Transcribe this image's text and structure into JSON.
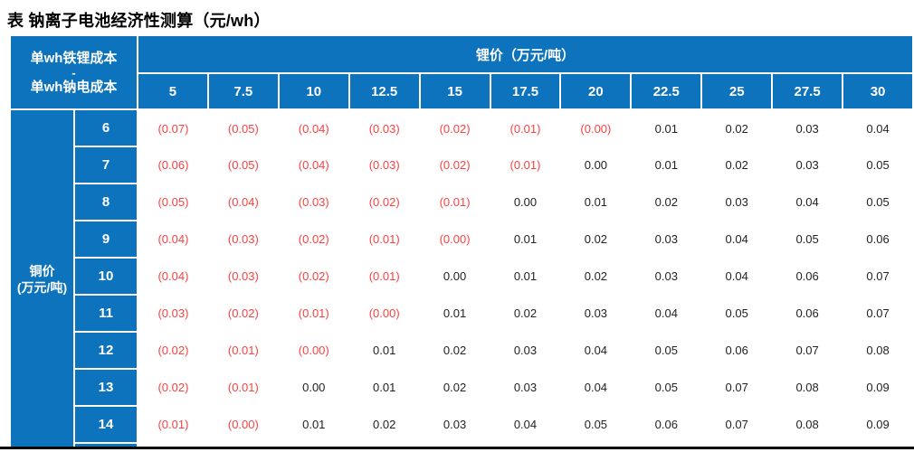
{
  "title": "表 钠离子电池经济性测算（元/wh）",
  "table": {
    "corner_lines": [
      "单wh铁锂成本",
      "-",
      "单wh钠电成本"
    ],
    "col_group_label": "锂价（万元/吨）",
    "row_group_lines": [
      "铜价",
      "(万元/吨)"
    ],
    "col_headers": [
      "5",
      "7.5",
      "10",
      "12.5",
      "15",
      "17.5",
      "20",
      "22.5",
      "25",
      "27.5",
      "30"
    ],
    "rows": [
      {
        "label": "6",
        "values": [
          "(0.07)",
          "(0.05)",
          "(0.04)",
          "(0.03)",
          "(0.02)",
          "(0.01)",
          "(0.00)",
          "0.01",
          "0.02",
          "0.03",
          "0.04"
        ]
      },
      {
        "label": "7",
        "values": [
          "(0.06)",
          "(0.05)",
          "(0.04)",
          "(0.03)",
          "(0.02)",
          "(0.01)",
          "0.00",
          "0.01",
          "0.02",
          "0.03",
          "0.05"
        ]
      },
      {
        "label": "8",
        "values": [
          "(0.05)",
          "(0.04)",
          "(0.03)",
          "(0.02)",
          "(0.01)",
          "0.00",
          "0.01",
          "0.02",
          "0.03",
          "0.04",
          "0.05"
        ]
      },
      {
        "label": "9",
        "values": [
          "(0.04)",
          "(0.03)",
          "(0.02)",
          "(0.01)",
          "(0.00)",
          "0.01",
          "0.02",
          "0.03",
          "0.04",
          "0.05",
          "0.06"
        ]
      },
      {
        "label": "10",
        "values": [
          "(0.04)",
          "(0.03)",
          "(0.02)",
          "(0.01)",
          "0.00",
          "0.01",
          "0.02",
          "0.03",
          "0.04",
          "0.06",
          "0.07"
        ]
      },
      {
        "label": "11",
        "values": [
          "(0.03)",
          "(0.02)",
          "(0.01)",
          "(0.00)",
          "0.01",
          "0.02",
          "0.03",
          "0.04",
          "0.05",
          "0.06",
          "0.07"
        ]
      },
      {
        "label": "12",
        "values": [
          "(0.02)",
          "(0.01)",
          "(0.00)",
          "0.01",
          "0.02",
          "0.03",
          "0.04",
          "0.05",
          "0.06",
          "0.07",
          "0.08"
        ]
      },
      {
        "label": "13",
        "values": [
          "(0.02)",
          "(0.01)",
          "0.00",
          "0.01",
          "0.02",
          "0.03",
          "0.04",
          "0.05",
          "0.07",
          "0.08",
          "0.09"
        ]
      },
      {
        "label": "14",
        "values": [
          "(0.01)",
          "(0.00)",
          "0.01",
          "0.02",
          "0.03",
          "0.04",
          "0.05",
          "0.06",
          "0.07",
          "0.08",
          "0.09"
        ]
      }
    ]
  },
  "colors": {
    "header_blue": "#0e73bd",
    "negative_red": "#fa4141",
    "value_text": "#222222",
    "bottom_rule": "#000000"
  },
  "chart_data": {
    "type": "table",
    "title": "表 钠离子电池经济性测算（元/wh）",
    "cell_metric": "单wh铁锂成本 - 单wh钠电成本",
    "column_axis": {
      "label": "锂价（万元/吨）",
      "values": [
        5,
        7.5,
        10,
        12.5,
        15,
        17.5,
        20,
        22.5,
        25,
        27.5,
        30
      ]
    },
    "row_axis": {
      "label": "铜价(万元/吨)",
      "values": [
        6,
        7,
        8,
        9,
        10,
        11,
        12,
        13,
        14
      ]
    },
    "negative_display": "red parentheses",
    "values": [
      [
        -0.07,
        -0.05,
        -0.04,
        -0.03,
        -0.02,
        -0.01,
        -0.0,
        0.01,
        0.02,
        0.03,
        0.04
      ],
      [
        -0.06,
        -0.05,
        -0.04,
        -0.03,
        -0.02,
        -0.01,
        0.0,
        0.01,
        0.02,
        0.03,
        0.05
      ],
      [
        -0.05,
        -0.04,
        -0.03,
        -0.02,
        -0.01,
        0.0,
        0.01,
        0.02,
        0.03,
        0.04,
        0.05
      ],
      [
        -0.04,
        -0.03,
        -0.02,
        -0.01,
        -0.0,
        0.01,
        0.02,
        0.03,
        0.04,
        0.05,
        0.06
      ],
      [
        -0.04,
        -0.03,
        -0.02,
        -0.01,
        0.0,
        0.01,
        0.02,
        0.03,
        0.04,
        0.06,
        0.07
      ],
      [
        -0.03,
        -0.02,
        -0.01,
        -0.0,
        0.01,
        0.02,
        0.03,
        0.04,
        0.05,
        0.06,
        0.07
      ],
      [
        -0.02,
        -0.01,
        -0.0,
        0.01,
        0.02,
        0.03,
        0.04,
        0.05,
        0.06,
        0.07,
        0.08
      ],
      [
        -0.02,
        -0.01,
        0.0,
        0.01,
        0.02,
        0.03,
        0.04,
        0.05,
        0.07,
        0.08,
        0.09
      ],
      [
        -0.01,
        -0.0,
        0.01,
        0.02,
        0.03,
        0.04,
        0.05,
        0.06,
        0.07,
        0.08,
        0.09
      ]
    ]
  }
}
